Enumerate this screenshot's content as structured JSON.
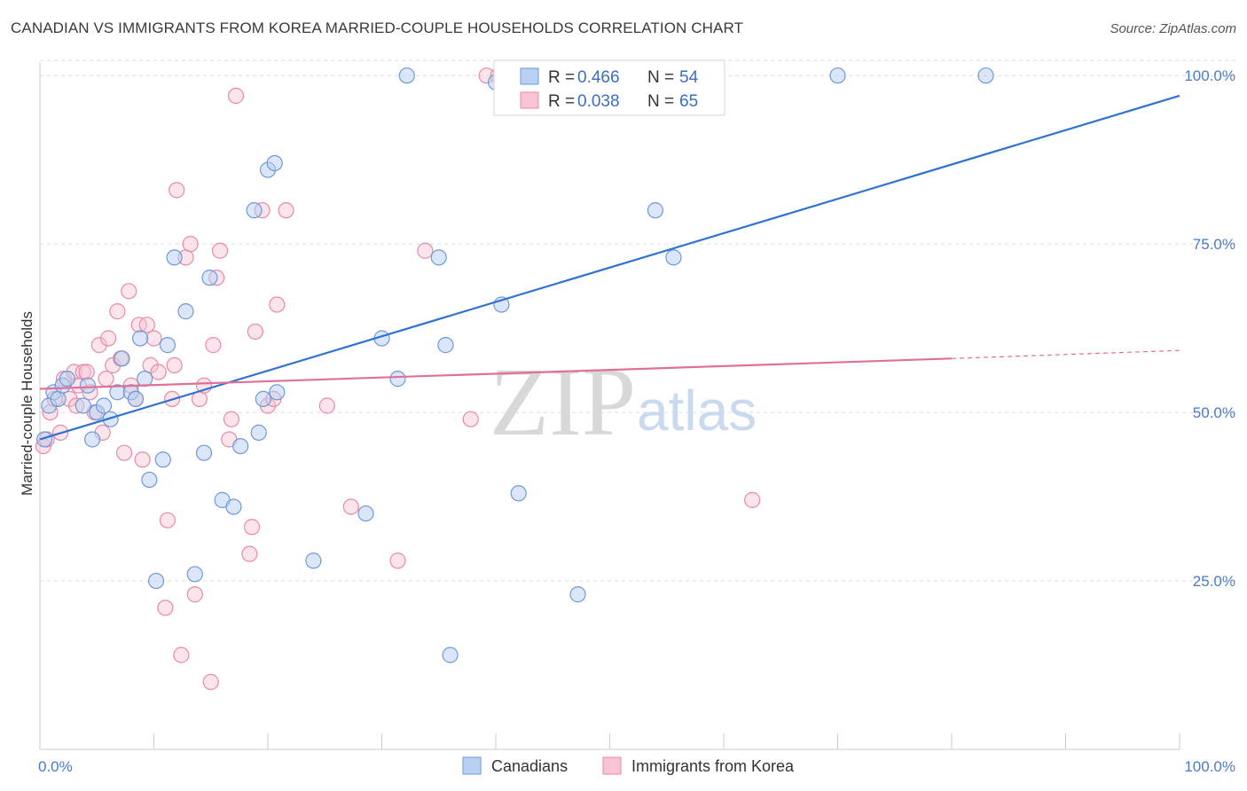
{
  "header": {
    "title": "CANADIAN VS IMMIGRANTS FROM KOREA MARRIED-COUPLE HOUSEHOLDS CORRELATION CHART",
    "source": "Source: ZipAtlas.com"
  },
  "watermark": {
    "zip": "ZIP",
    "atlas": "atlas"
  },
  "legend_top": {
    "rows": [
      {
        "r_label": "R =",
        "r_value": "0.466",
        "n_label": "N =",
        "n_value": "54"
      },
      {
        "r_label": "R =",
        "r_value": "0.038",
        "n_label": "N =",
        "n_value": "65"
      }
    ]
  },
  "legend_bottom": [
    "Canadians",
    "Immigrants from Korea"
  ],
  "colors": {
    "canadians_fill": "#b8d0f2",
    "canadians_stroke": "#6d9ad8",
    "canadians_line": "#2f73d0",
    "korea_fill": "#f8c3d3",
    "korea_stroke": "#e88aa8",
    "korea_line": "#e0709a",
    "tick_text": "#4a7cc4",
    "grid": "#dddddd"
  },
  "chart_data": {
    "type": "scatter",
    "title": "CANADIAN VS IMMIGRANTS FROM KOREA MARRIED-COUPLE HOUSEHOLDS CORRELATION CHART",
    "xlabel": "",
    "ylabel": "Married-couple Households",
    "xlim": [
      0,
      100
    ],
    "ylim": [
      0,
      102
    ],
    "x_tick_labels": [
      "0.0%",
      "100.0%"
    ],
    "y_ticks": [
      25,
      50,
      75,
      100
    ],
    "y_tick_labels": [
      "25.0%",
      "50.0%",
      "75.0%",
      "100.0%"
    ],
    "grid": true,
    "legend_position": "top-center",
    "series": [
      {
        "name": "Canadians",
        "r": 0.466,
        "n": 54,
        "trend": {
          "x": [
            0,
            100
          ],
          "y": [
            46,
            97
          ]
        },
        "points": [
          [
            0.4,
            46
          ],
          [
            0.8,
            51
          ],
          [
            1.2,
            53
          ],
          [
            1.6,
            52
          ],
          [
            2,
            54
          ],
          [
            2.4,
            55
          ],
          [
            3.8,
            51
          ],
          [
            4.6,
            46
          ],
          [
            4.2,
            54
          ],
          [
            5,
            50
          ],
          [
            5.6,
            51
          ],
          [
            6.2,
            49
          ],
          [
            6.8,
            53
          ],
          [
            7.2,
            58
          ],
          [
            8,
            53
          ],
          [
            8.4,
            52
          ],
          [
            8.8,
            61
          ],
          [
            9.2,
            55
          ],
          [
            9.6,
            40
          ],
          [
            10.8,
            43
          ],
          [
            10.2,
            25
          ],
          [
            11.2,
            60
          ],
          [
            11.8,
            73
          ],
          [
            12.8,
            65
          ],
          [
            13.6,
            26
          ],
          [
            14.4,
            44
          ],
          [
            14.9,
            70
          ],
          [
            16,
            37
          ],
          [
            17,
            36
          ],
          [
            17.6,
            45
          ],
          [
            18.8,
            80
          ],
          [
            19.2,
            47
          ],
          [
            19.6,
            52
          ],
          [
            20,
            86
          ],
          [
            20.6,
            87
          ],
          [
            20.8,
            53
          ],
          [
            24,
            28
          ],
          [
            28.6,
            35
          ],
          [
            30,
            61
          ],
          [
            31.4,
            55
          ],
          [
            32.2,
            100
          ],
          [
            35,
            73
          ],
          [
            35.6,
            60
          ],
          [
            36,
            14
          ],
          [
            40,
            99
          ],
          [
            40.5,
            66
          ],
          [
            42,
            38
          ],
          [
            47.2,
            23
          ],
          [
            54,
            80
          ],
          [
            55.6,
            73
          ],
          [
            58,
            96
          ],
          [
            70,
            100
          ],
          [
            83,
            100
          ],
          [
            42.5,
            100
          ]
        ]
      },
      {
        "name": "Immigrants from Korea",
        "r": 0.038,
        "n": 65,
        "trend": {
          "x": [
            0,
            80
          ],
          "y": [
            53.5,
            58
          ]
        },
        "trend_dashed": {
          "x": [
            80,
            100
          ],
          "y": [
            58,
            59.2
          ]
        },
        "points": [
          [
            0.3,
            45
          ],
          [
            0.6,
            46
          ],
          [
            0.9,
            50
          ],
          [
            1.3,
            52
          ],
          [
            1.8,
            47
          ],
          [
            2.1,
            55
          ],
          [
            2.6,
            52
          ],
          [
            3,
            56
          ],
          [
            3.4,
            54
          ],
          [
            3.8,
            56
          ],
          [
            4.1,
            56
          ],
          [
            4.4,
            53
          ],
          [
            4.8,
            50
          ],
          [
            5.2,
            60
          ],
          [
            5.5,
            47
          ],
          [
            5.8,
            55
          ],
          [
            6,
            61
          ],
          [
            6.4,
            57
          ],
          [
            6.8,
            65
          ],
          [
            7.1,
            58
          ],
          [
            7.4,
            44
          ],
          [
            7.8,
            68
          ],
          [
            8,
            54
          ],
          [
            8.4,
            52
          ],
          [
            8.7,
            63
          ],
          [
            9,
            43
          ],
          [
            9.4,
            63
          ],
          [
            9.7,
            57
          ],
          [
            10,
            61
          ],
          [
            10.4,
            56
          ],
          [
            11,
            21
          ],
          [
            11.2,
            34
          ],
          [
            11.8,
            57
          ],
          [
            12,
            83
          ],
          [
            12.4,
            14
          ],
          [
            12.8,
            73
          ],
          [
            13.2,
            75
          ],
          [
            13.6,
            23
          ],
          [
            14,
            52
          ],
          [
            14.4,
            54
          ],
          [
            15,
            10
          ],
          [
            15.2,
            60
          ],
          [
            15.5,
            70
          ],
          [
            15.8,
            74
          ],
          [
            16.6,
            46
          ],
          [
            16.8,
            49
          ],
          [
            17.2,
            97
          ],
          [
            18.4,
            29
          ],
          [
            18.6,
            33
          ],
          [
            18.9,
            62
          ],
          [
            19.5,
            80
          ],
          [
            20,
            51
          ],
          [
            20.5,
            52
          ],
          [
            20.8,
            66
          ],
          [
            21.6,
            80
          ],
          [
            25.2,
            51
          ],
          [
            27.3,
            36
          ],
          [
            31.4,
            28
          ],
          [
            33.8,
            74
          ],
          [
            37.8,
            49
          ],
          [
            39.2,
            100
          ],
          [
            40.2,
            100
          ],
          [
            62.5,
            37
          ],
          [
            11.6,
            52
          ],
          [
            3.2,
            51
          ]
        ]
      }
    ]
  }
}
